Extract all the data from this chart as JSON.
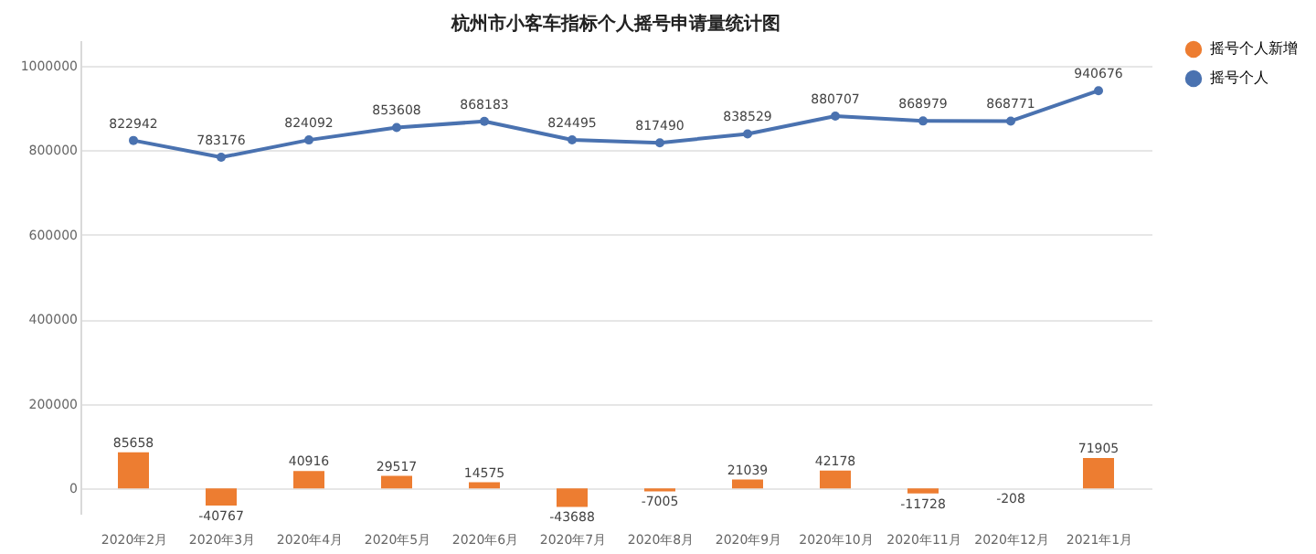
{
  "chart_data": {
    "type": "bar",
    "title": "杭州市小客车指标个人摇号申请量统计图",
    "categories": [
      "2020年2月",
      "2020年3月",
      "2020年4月",
      "2020年5月",
      "2020年6月",
      "2020年7月",
      "2020年8月",
      "2020年9月",
      "2020年10月",
      "2020年11月",
      "2020年12月",
      "2021年1月"
    ],
    "series": [
      {
        "name": "摇号个人新增",
        "color": "#ed7d31",
        "values": [
          85658,
          -40767,
          40916,
          29517,
          14575,
          -43688,
          -7005,
          21039,
          42178,
          -11728,
          -208,
          71905
        ]
      },
      {
        "name": "摇号个人",
        "type": "line",
        "color": "#4a72b0",
        "values": [
          822942,
          783176,
          824092,
          853608,
          868183,
          824495,
          817490,
          838529,
          880707,
          868979,
          868771,
          940676
        ]
      }
    ],
    "ylim": [
      -60000,
      1060000
    ],
    "yticks": [
      0,
      200000,
      400000,
      600000,
      800000,
      1000000
    ],
    "grid": "y",
    "legend": "right",
    "marker": "circle",
    "line_style": "solid",
    "data_labels": true
  }
}
